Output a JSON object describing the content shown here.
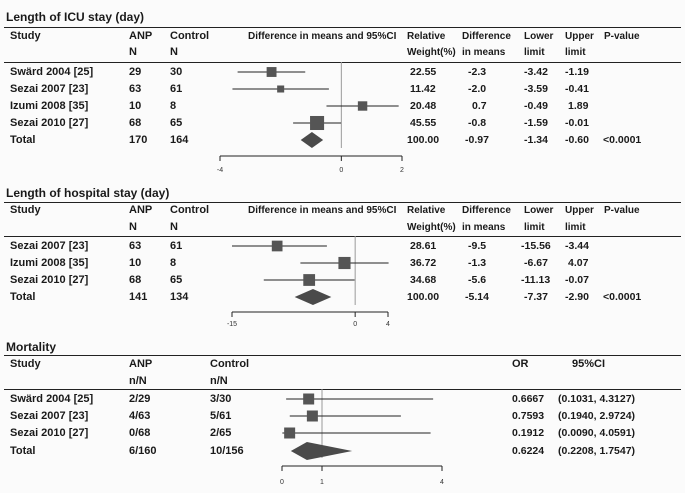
{
  "colors": {
    "marker": "#555555",
    "diamond": "#4a4a4a",
    "line": "#222222",
    "background": "#fbfbfb"
  },
  "icu": {
    "title": "Length of ICU stay (day)",
    "headers": {
      "study": "Study",
      "anp": "ANP",
      "anp_sub": "N",
      "control": "Control",
      "control_sub": "N",
      "diff": "Difference in means and 95%CI",
      "weight": "Relative",
      "weight_sub": "Weight(%)",
      "difference": "Difference",
      "difference_sub": "in means",
      "lower": "Lower",
      "lower_sub": "limit",
      "upper": "Upper",
      "upper_sub": "limit",
      "pvalue": "P-value"
    },
    "rows": [
      {
        "study": "Swärd 2004 [25]",
        "anp": "29",
        "control": "30",
        "weight": "22.55",
        "diff": "-2.3",
        "lower": "-3.42",
        "upper": "-1.19",
        "p": ""
      },
      {
        "study": "Sezai 2007 [23]",
        "anp": "63",
        "control": "61",
        "weight": "11.42",
        "diff": "-2.0",
        "lower": "-3.59",
        "upper": "-0.41",
        "p": ""
      },
      {
        "study": "Izumi 2008 [35]",
        "anp": "10",
        "control": "8",
        "weight": "20.48",
        "diff": "0.7",
        "lower": "-0.49",
        "upper": "1.89",
        "p": ""
      },
      {
        "study": "Sezai 2010 [27]",
        "anp": "68",
        "control": "65",
        "weight": "45.55",
        "diff": "-0.8",
        "lower": "-1.59",
        "upper": "-0.01",
        "p": ""
      }
    ],
    "total": {
      "study": "Total",
      "anp": "170",
      "control": "164",
      "weight": "100.00",
      "diff": "-0.97",
      "lower": "-1.34",
      "upper": "-0.60",
      "p": "<0.0001"
    },
    "ticks": [
      "-4",
      "0",
      "2"
    ]
  },
  "hospital": {
    "title": "Length of hospital stay (day)",
    "headers": {
      "study": "Study",
      "anp": "ANP",
      "anp_sub": "N",
      "control": "Control",
      "control_sub": "N",
      "diff": "Difference in means and 95%CI",
      "weight": "Relative",
      "weight_sub": "Weight(%)",
      "difference": "Difference",
      "difference_sub": "in means",
      "lower": "Lower",
      "lower_sub": "limit",
      "upper": "Upper",
      "upper_sub": "limit",
      "pvalue": "P-value"
    },
    "rows": [
      {
        "study": "Sezai 2007 [23]",
        "anp": "63",
        "control": "61",
        "weight": "28.61",
        "diff": "-9.5",
        "lower": "-15.56",
        "upper": "-3.44",
        "p": ""
      },
      {
        "study": "Izumi 2008 [35]",
        "anp": "10",
        "control": "8",
        "weight": "36.72",
        "diff": "-1.3",
        "lower": "-6.67",
        "upper": "4.07",
        "p": ""
      },
      {
        "study": "Sezai 2010 [27]",
        "anp": "68",
        "control": "65",
        "weight": "34.68",
        "diff": "-5.6",
        "lower": "-11.13",
        "upper": "-0.07",
        "p": ""
      }
    ],
    "total": {
      "study": "Total",
      "anp": "141",
      "control": "134",
      "weight": "100.00",
      "diff": "-5.14",
      "lower": "-7.37",
      "upper": "-2.90",
      "p": "<0.0001"
    },
    "ticks": [
      "-15",
      "0",
      "4"
    ]
  },
  "mortality": {
    "title": "Mortality",
    "headers": {
      "study": "Study",
      "anp": "ANP",
      "anp_sub": "n/N",
      "control": "Control",
      "control_sub": "n/N",
      "or": "OR",
      "ci": "95%CI"
    },
    "rows": [
      {
        "study": "Swärd 2004 [25]",
        "anp": "2/29",
        "control": "3/30",
        "or": "0.6667",
        "ci": "(0.1031, 4.3127)"
      },
      {
        "study": "Sezai 2007 [23]",
        "anp": "4/63",
        "control": "5/61",
        "or": "0.7593",
        "ci": "(0.1940, 2.9724)"
      },
      {
        "study": "Sezai 2010 [27]",
        "anp": "0/68",
        "control": "2/65",
        "or": "0.1912",
        "ci": "(0.0090, 4.0591)"
      }
    ],
    "total": {
      "study": "Total",
      "anp": "6/160",
      "control": "10/156",
      "or": "0.6224",
      "ci": "(0.2208, 1.7547)"
    },
    "ticks": [
      "0",
      "1",
      "4"
    ]
  },
  "chart_data": [
    {
      "type": "forest",
      "title": "Length of ICU stay (day)",
      "measure": "Difference in means and 95%CI",
      "xlim": [
        -4,
        2
      ],
      "ticks": [
        -4,
        0,
        2
      ],
      "studies": [
        {
          "name": "Swärd 2004 [25]",
          "estimate": -2.3,
          "lower": -3.42,
          "upper": -1.19,
          "weight": 22.55
        },
        {
          "name": "Sezai 2007 [23]",
          "estimate": -2.0,
          "lower": -3.59,
          "upper": -0.41,
          "weight": 11.42
        },
        {
          "name": "Izumi 2008 [35]",
          "estimate": 0.7,
          "lower": -0.49,
          "upper": 1.89,
          "weight": 20.48
        },
        {
          "name": "Sezai 2010 [27]",
          "estimate": -0.8,
          "lower": -1.59,
          "upper": -0.01,
          "weight": 45.55
        }
      ],
      "pooled": {
        "estimate": -0.97,
        "lower": -1.34,
        "upper": -0.6,
        "p": "<0.0001"
      }
    },
    {
      "type": "forest",
      "title": "Length of hospital stay (day)",
      "measure": "Difference in means and 95%CI",
      "xlim": [
        -15,
        4
      ],
      "ticks": [
        -15,
        0,
        4
      ],
      "studies": [
        {
          "name": "Sezai 2007 [23]",
          "estimate": -9.5,
          "lower": -15.56,
          "upper": -3.44,
          "weight": 28.61
        },
        {
          "name": "Izumi 2008 [35]",
          "estimate": -1.3,
          "lower": -6.67,
          "upper": 4.07,
          "weight": 36.72
        },
        {
          "name": "Sezai 2010 [27]",
          "estimate": -5.6,
          "lower": -11.13,
          "upper": -0.07,
          "weight": 34.68
        }
      ],
      "pooled": {
        "estimate": -5.14,
        "lower": -7.37,
        "upper": -2.9,
        "p": "<0.0001"
      }
    },
    {
      "type": "forest",
      "title": "Mortality",
      "measure": "OR",
      "xlim": [
        0,
        4
      ],
      "ticks": [
        0,
        1,
        4
      ],
      "studies": [
        {
          "name": "Swärd 2004 [25]",
          "estimate": 0.6667,
          "lower": 0.1031,
          "upper": 4.3127
        },
        {
          "name": "Sezai 2007 [23]",
          "estimate": 0.7593,
          "lower": 0.194,
          "upper": 2.9724
        },
        {
          "name": "Sezai 2010 [27]",
          "estimate": 0.1912,
          "lower": 0.009,
          "upper": 4.0591
        }
      ],
      "pooled": {
        "estimate": 0.6224,
        "lower": 0.2208,
        "upper": 1.7547
      }
    }
  ]
}
